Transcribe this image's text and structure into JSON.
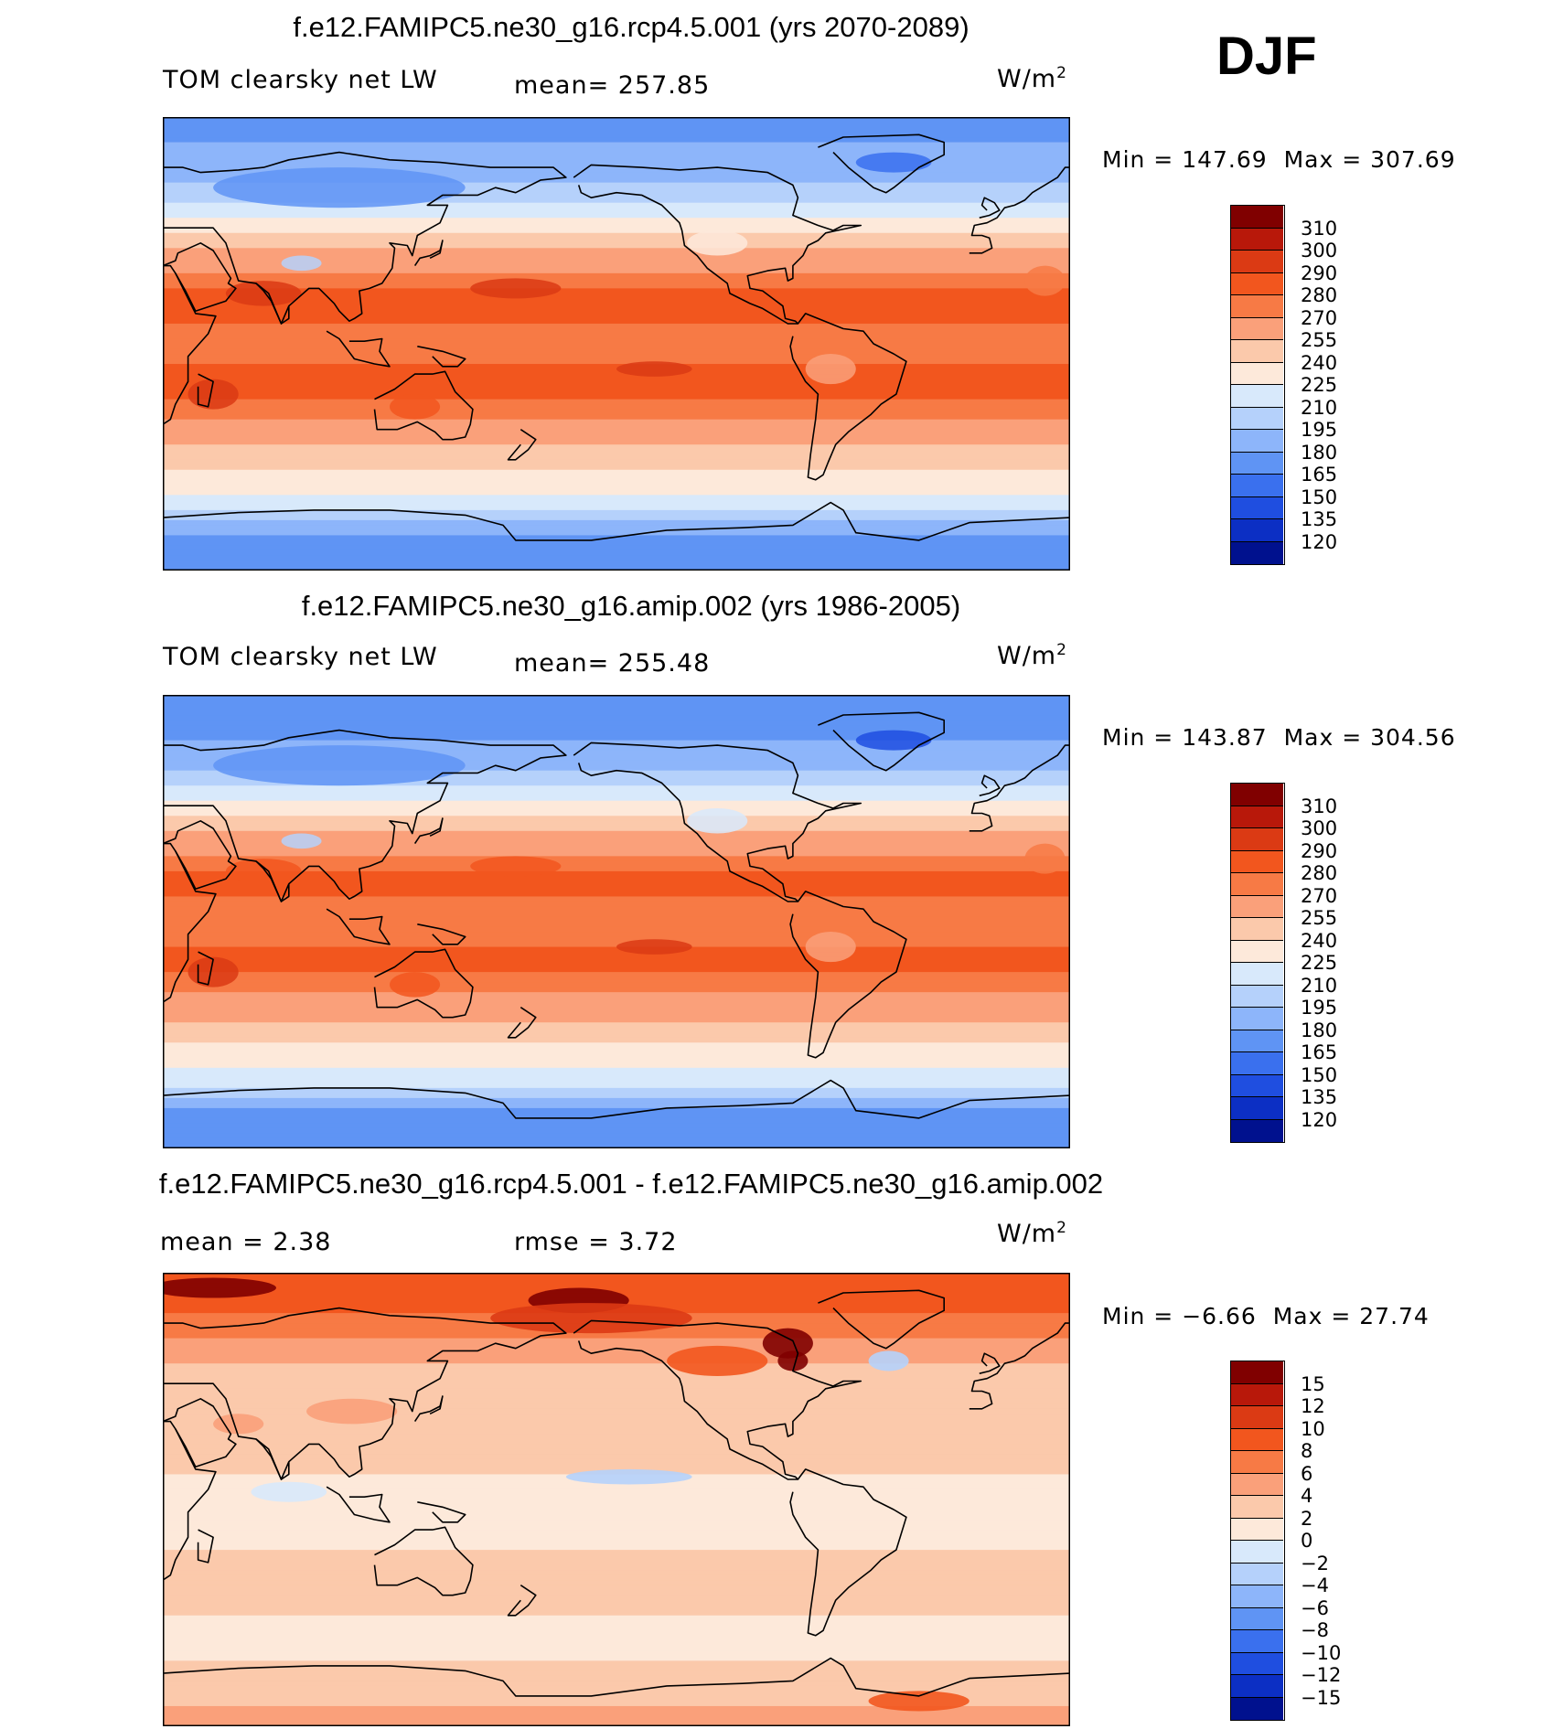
{
  "season_label": "DJF",
  "panels": [
    {
      "title": "f.e12.FAMIPC5.ne30_g16.rcp4.5.001 (yrs 2070-2089)",
      "left_text": "TOM clearsky net LW",
      "center_text": "mean= 257.85",
      "units_base": "W/m",
      "units_exp": "2",
      "min_label": "Min = ",
      "min_value": "147.69",
      "max_label": "Max = ",
      "max_value": "307.69"
    },
    {
      "title": "f.e12.FAMIPC5.ne30_g16.amip.002 (yrs 1986-2005)",
      "left_text": "TOM clearsky net LW",
      "center_text": "mean= 255.48",
      "units_base": "W/m",
      "units_exp": "2",
      "min_label": "Min = ",
      "min_value": "143.87",
      "max_label": "Max = ",
      "max_value": "304.56"
    },
    {
      "title": "f.e12.FAMIPC5.ne30_g16.rcp4.5.001 - f.e12.FAMIPC5.ne30_g16.amip.002",
      "left_text": "mean =   2.38",
      "center_text": "rmse =   3.72",
      "units_base": "W/m",
      "units_exp": "2",
      "min_label": "Min = ",
      "min_value": "−6.66",
      "max_label": "Max = ",
      "max_value": "27.74"
    }
  ],
  "chart_data": [
    {
      "type": "heatmap",
      "title": "f.e12.FAMIPC5.ne30_g16.rcp4.5.001 (yrs 2070-2089)",
      "variable": "TOM clearsky net LW",
      "mean": 257.85,
      "min": 147.69,
      "max": 307.69,
      "units": "W/m2",
      "projection": "cylindrical equidistant, centered on Pacific",
      "x_range": [
        30,
        390
      ],
      "y_range": [
        -90,
        90
      ],
      "colorbar_levels": [
        "310",
        "300",
        "290",
        "280",
        "270",
        "255",
        "240",
        "225",
        "210",
        "195",
        "180",
        "165",
        "150",
        "135",
        "120"
      ],
      "colorbar_colors": [
        "#800000",
        "#b8180a",
        "#db3a14",
        "#f2561e",
        "#f77a45",
        "#faa07a",
        "#fbc9ab",
        "#fde9da",
        "#d8e9fb",
        "#b5d1fb",
        "#8db5fa",
        "#5f94f4",
        "#3a70ee",
        "#1f4ee0",
        "#0c2fc4",
        "#00118e"
      ],
      "zonal_profile_lat": [
        -90,
        -75,
        -65,
        -55,
        -45,
        -35,
        -20,
        -10,
        0,
        10,
        20,
        35,
        45,
        55,
        65,
        75,
        90
      ],
      "zonal_profile_value": [
        170,
        180,
        215,
        233,
        248,
        265,
        282,
        282,
        274,
        282,
        282,
        260,
        235,
        210,
        192,
        182,
        175
      ]
    },
    {
      "type": "heatmap",
      "title": "f.e12.FAMIPC5.ne30_g16.amip.002 (yrs 1986-2005)",
      "variable": "TOM clearsky net LW",
      "mean": 255.48,
      "min": 143.87,
      "max": 304.56,
      "units": "W/m2",
      "projection": "cylindrical equidistant, centered on Pacific",
      "x_range": [
        30,
        390
      ],
      "y_range": [
        -90,
        90
      ],
      "colorbar_levels": [
        "310",
        "300",
        "290",
        "280",
        "270",
        "255",
        "240",
        "225",
        "210",
        "195",
        "180",
        "165",
        "150",
        "135",
        "120"
      ],
      "colorbar_colors": [
        "#800000",
        "#b8180a",
        "#db3a14",
        "#f2561e",
        "#f77a45",
        "#faa07a",
        "#fbc9ab",
        "#fde9da",
        "#d8e9fb",
        "#b5d1fb",
        "#8db5fa",
        "#5f94f4",
        "#3a70ee",
        "#1f4ee0",
        "#0c2fc4",
        "#00118e"
      ],
      "zonal_profile_lat": [
        -90,
        -75,
        -65,
        -55,
        -45,
        -35,
        -20,
        -10,
        0,
        10,
        20,
        35,
        45,
        55,
        65,
        75,
        90
      ],
      "zonal_profile_value": [
        166,
        176,
        212,
        230,
        246,
        263,
        280,
        280,
        272,
        280,
        280,
        257,
        232,
        205,
        186,
        176,
        170
      ]
    },
    {
      "type": "heatmap",
      "title": "f.e12.FAMIPC5.ne30_g16.rcp4.5.001 - f.e12.FAMIPC5.ne30_g16.amip.002",
      "mean": 2.38,
      "rmse": 3.72,
      "min": -6.66,
      "max": 27.74,
      "units": "W/m2",
      "projection": "cylindrical equidistant, centered on Pacific",
      "x_range": [
        30,
        390
      ],
      "y_range": [
        -90,
        90
      ],
      "colorbar_levels": [
        "15",
        "12",
        "10",
        "8",
        "6",
        "4",
        "2",
        "0",
        "−2",
        "−4",
        "−6",
        "−8",
        "−10",
        "−12",
        "−15"
      ],
      "colorbar_colors": [
        "#800000",
        "#b8180a",
        "#db3a14",
        "#f2561e",
        "#f77a45",
        "#faa07a",
        "#fbc9ab",
        "#fde9da",
        "#d8e9fb",
        "#b5d1fb",
        "#8db5fa",
        "#5f94f4",
        "#3a70ee",
        "#1f4ee0",
        "#0c2fc4",
        "#00118e"
      ],
      "zonal_profile_lat": [
        -90,
        -75,
        -65,
        -55,
        -45,
        -35,
        -20,
        -10,
        0,
        10,
        20,
        35,
        45,
        55,
        65,
        75,
        90
      ],
      "zonal_profile_value": [
        5,
        3,
        2,
        1,
        2,
        2,
        2,
        1,
        1,
        2,
        3,
        3,
        3,
        4,
        6,
        8,
        9
      ]
    }
  ]
}
